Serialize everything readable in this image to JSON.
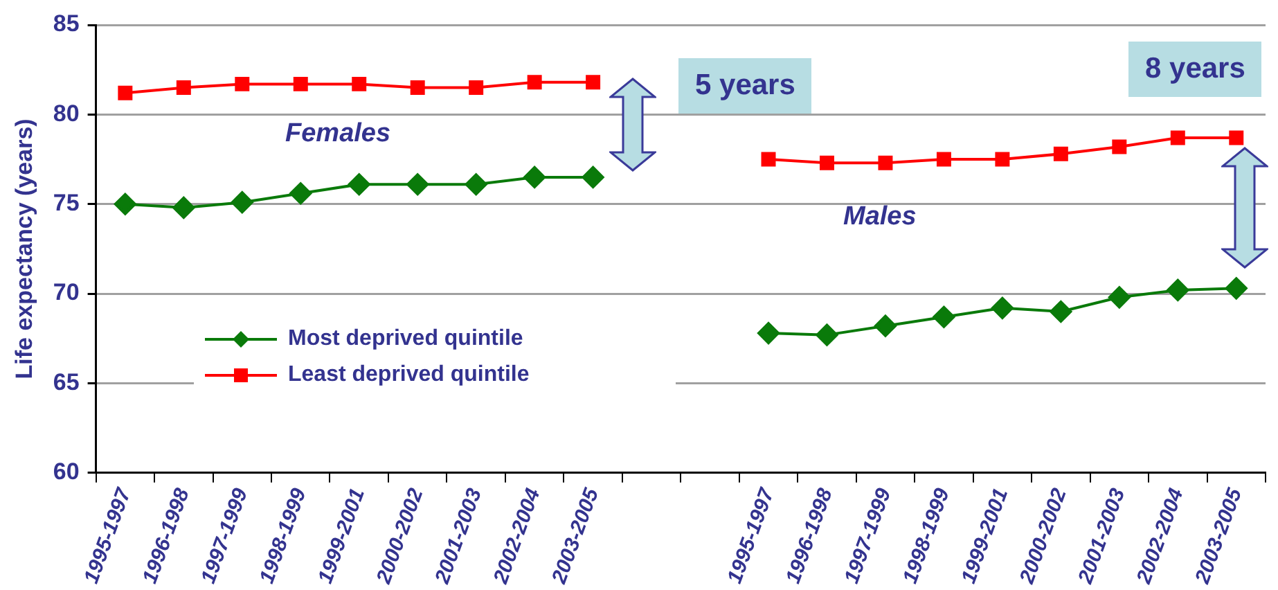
{
  "chart_data": {
    "type": "line",
    "ylabel": "Life expectancy (years)",
    "categories": [
      "1995-1997",
      "1996-1998",
      "1997-1999",
      "1998-1999",
      "1999-2001",
      "2000-2002",
      "2001-2003",
      "2002-2004",
      "2003-2005",
      null,
      null,
      "1995-1997",
      "1996-1998",
      "1997-1999",
      "1998-1999",
      "1999-2001",
      "2000-2002",
      "2001-2003",
      "2002-2004",
      "2003-2005"
    ],
    "series": [
      {
        "name": "Most deprived quintile",
        "color": "#0a7a0a",
        "marker": "diamond",
        "values": [
          75.0,
          74.8,
          75.1,
          75.6,
          76.1,
          76.1,
          76.1,
          76.5,
          76.5,
          null,
          null,
          67.8,
          67.7,
          68.2,
          68.7,
          69.2,
          69.0,
          69.8,
          70.2,
          70.3
        ]
      },
      {
        "name": "Least deprived quintile",
        "color": "#ff0000",
        "marker": "square",
        "values": [
          81.2,
          81.5,
          81.7,
          81.7,
          81.7,
          81.5,
          81.5,
          81.8,
          81.8,
          null,
          null,
          77.5,
          77.3,
          77.3,
          77.5,
          77.5,
          77.8,
          78.2,
          78.7,
          78.7
        ]
      }
    ],
    "ylim": [
      60,
      85
    ],
    "yticks": [
      60,
      65,
      70,
      75,
      80,
      85
    ],
    "grid": "y",
    "legend": "bottom left",
    "line_style": "solid",
    "annotations": [
      "Females",
      "Males",
      "5 years",
      "8 years"
    ]
  }
}
